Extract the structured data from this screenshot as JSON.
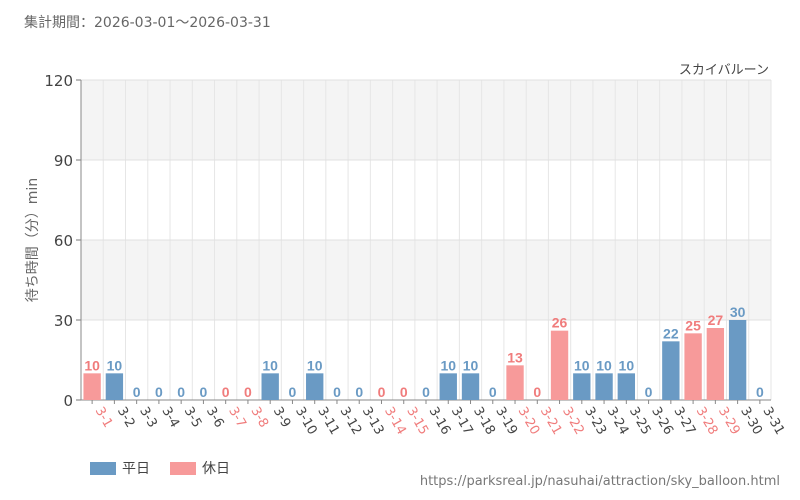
{
  "header": {
    "period_label": "集計期間：",
    "period_range": "2026-03-01～2026-03-31"
  },
  "legend": {
    "weekday": "平日",
    "holiday": "休日"
  },
  "source_url": "https://parksreal.jp/nasuhai/attraction/sky_balloon.html",
  "colors": {
    "weekday": "#6a9ac4",
    "holiday": "#f79a9a",
    "holiday_text": "#f07c7c"
  },
  "chart_data": {
    "type": "bar",
    "title": "スカイバルーン",
    "xlabel": "",
    "ylabel": "待ち時間（分）min",
    "ylim": [
      0,
      120
    ],
    "yticks": [
      0,
      30,
      60,
      90,
      120
    ],
    "grid": true,
    "legend_position": "bottom-left",
    "categories": [
      "3-1",
      "3-2",
      "3-3",
      "3-4",
      "3-5",
      "3-6",
      "3-7",
      "3-8",
      "3-9",
      "3-10",
      "3-11",
      "3-12",
      "3-13",
      "3-14",
      "3-15",
      "3-16",
      "3-17",
      "3-18",
      "3-19",
      "3-20",
      "3-21",
      "3-22",
      "3-23",
      "3-24",
      "3-25",
      "3-26",
      "3-27",
      "3-28",
      "3-29",
      "3-30",
      "3-31"
    ],
    "values": [
      10,
      10,
      0,
      0,
      0,
      0,
      0,
      0,
      10,
      0,
      10,
      0,
      0,
      0,
      0,
      0,
      10,
      10,
      0,
      13,
      0,
      26,
      10,
      10,
      10,
      0,
      22,
      25,
      27,
      30,
      0
    ],
    "day_type": [
      "休日",
      "平日",
      "平日",
      "平日",
      "平日",
      "平日",
      "休日",
      "休日",
      "平日",
      "平日",
      "平日",
      "平日",
      "平日",
      "休日",
      "休日",
      "平日",
      "平日",
      "平日",
      "平日",
      "休日",
      "休日",
      "休日",
      "平日",
      "平日",
      "平日",
      "平日",
      "平日",
      "休日",
      "休日",
      "平日",
      "平日"
    ]
  }
}
